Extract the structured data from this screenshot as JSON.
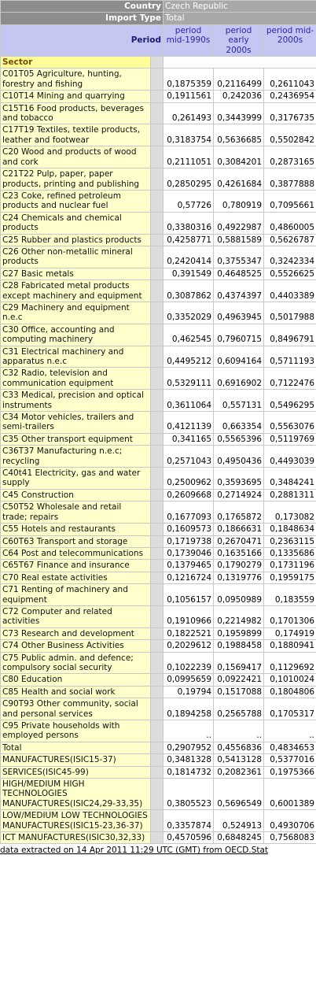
{
  "header": {
    "country_label": "Country",
    "country": "Czech Republic",
    "import_type_label": "Import Type",
    "import_type": "Total",
    "period_label": "Period",
    "periods": [
      "period mid-1990s",
      "period early 2000s",
      "period mid-2000s"
    ]
  },
  "table": {
    "section_label": "Sector",
    "rows": [
      [
        "C01T05 Agriculture, hunting, forestry and fishing",
        "0,1875359",
        "0,2116499",
        "0,2611043"
      ],
      [
        "C10T14 Mining and quarrying",
        "0,1911561",
        "0,242036",
        "0,2436954"
      ],
      [
        "C15T16 Food products, beverages and tobacco",
        "0,261493",
        "0,3443999",
        "0,3176735"
      ],
      [
        "C17T19 Textiles, textile products, leather and footwear",
        "0,3183754",
        "0,5636685",
        "0,5502842"
      ],
      [
        "C20 Wood and products of wood and cork",
        "0,2111051",
        "0,3084201",
        "0,2873165"
      ],
      [
        "C21T22 Pulp, paper, paper products, printing and publishing",
        "0,2850295",
        "0,4261684",
        "0,3877888"
      ],
      [
        "C23 Coke, refined petroleum products and nuclear fuel",
        "0,57726",
        "0,780919",
        "0,7095661"
      ],
      [
        "C24 Chemicals and chemical products",
        "0,3380316",
        "0,4922987",
        "0,4860005"
      ],
      [
        "C25 Rubber and plastics products",
        "0,4258771",
        "0,5881589",
        "0,5626787"
      ],
      [
        "C26 Other non-metallic mineral products",
        "0,2420414",
        "0,3755347",
        "0,3242334"
      ],
      [
        "C27 Basic metals",
        "0,391549",
        "0,4648525",
        "0,5526625"
      ],
      [
        "C28 Fabricated metal products except machinery and equipment",
        "0,3087862",
        "0,4374397",
        "0,4403389"
      ],
      [
        "C29 Machinery and equipment n.e.c",
        "0,3352029",
        "0,4963945",
        "0,5017988"
      ],
      [
        "C30 Office, accounting and computing machinery",
        "0,462545",
        "0,7960715",
        "0,8496791"
      ],
      [
        "C31 Electrical machinery and apparatus n.e.c",
        "0,4495212",
        "0,6094164",
        "0,5711193"
      ],
      [
        "C32 Radio, television and communication equipment",
        "0,5329111",
        "0,6916902",
        "0,7122476"
      ],
      [
        "C33 Medical, precision and optical instruments",
        "0,3611064",
        "0,557131",
        "0,5496295"
      ],
      [
        "C34 Motor vehicles, trailers and semi-trailers",
        "0,4121139",
        "0,663354",
        "0,5563076"
      ],
      [
        "C35 Other transport equipment",
        "0,341165",
        "0,5565396",
        "0,5119769"
      ],
      [
        "C36T37 Manufacturing n.e.c; recycling",
        "0,2571043",
        "0,4950436",
        "0,4493039"
      ],
      [
        "C40t41 Electricity, gas and water supply",
        "0,2500962",
        "0,3593695",
        "0,3484241"
      ],
      [
        "C45 Construction",
        "0,2609668",
        "0,2714924",
        "0,2881311"
      ],
      [
        "C50T52 Wholesale and retail trade; repairs",
        "0,1677093",
        "0,1765872",
        "0,173082"
      ],
      [
        "C55 Hotels and restaurants",
        "0,1609573",
        "0,1866631",
        "0,1848634"
      ],
      [
        "C60T63 Transport and storage",
        "0,1719738",
        "0,2670471",
        "0,2363115"
      ],
      [
        "C64 Post and telecommunications",
        "0,1739046",
        "0,1635166",
        "0,1335686"
      ],
      [
        "C65T67 Finance and insurance",
        "0,1379465",
        "0,1790279",
        "0,1731196"
      ],
      [
        "C70 Real estate activities",
        "0,1216724",
        "0,1319776",
        "0,1959175"
      ],
      [
        "C71 Renting of machinery and equipment",
        "0,1056157",
        "0,0950989",
        "0,183559"
      ],
      [
        "C72 Computer and related activities",
        "0,1910966",
        "0,2214982",
        "0,1701306"
      ],
      [
        "C73 Research and development",
        "0,1822521",
        "0,1959899",
        "0,174919"
      ],
      [
        "C74 Other Business Activities",
        "0,2029612",
        "0,1988458",
        "0,1880941"
      ],
      [
        "C75 Public admin. and defence; compulsory social security",
        "0,1022239",
        "0,1569417",
        "0,1129692"
      ],
      [
        "C80 Education",
        "0,0995659",
        "0,0922421",
        "0,1010024"
      ],
      [
        "C85 Health and social work",
        "0,19794",
        "0,1517088",
        "0,1804806"
      ],
      [
        "C90T93 Other community, social and personal services",
        "0,1894258",
        "0,2565788",
        "0,1705317"
      ],
      [
        "C95 Private households with employed persons",
        "..",
        "..",
        ".."
      ],
      [
        "Total",
        "0,2907952",
        "0,4556836",
        "0,4834653"
      ],
      [
        "MANUFACTURES(ISIC15-37)",
        "0,3481328",
        "0,5413128",
        "0,5377016"
      ],
      [
        "SERVICES(ISIC45-99)",
        "0,1814732",
        "0,2082361",
        "0,1975366"
      ],
      [
        "HIGH/MEDIUM HIGH TECHNOLOGIES MANUFACTURES(ISIC24,29-33,35)",
        "0,3805523",
        "0,5696549",
        "0,6001389"
      ],
      [
        "LOW/MEDIUM LOW TECHNOLOGIES MANUFACTURES(ISIC15-23,36-37)",
        "0,3357874",
        "0,524913",
        "0,4930706"
      ],
      [
        "ICT MANUFACTURES(ISIC30,32,33)",
        "0,4570596",
        "0,6848245",
        "0,7568083"
      ]
    ]
  },
  "footer": {
    "source": "data extracted on 14 Apr 2011 11:29 UTC (GMT) from OECD.Stat"
  }
}
